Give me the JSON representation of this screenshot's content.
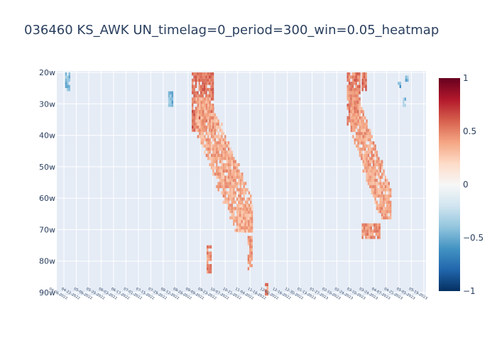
{
  "chart_data": {
    "type": "heatmap",
    "title": "036460 KS_AWK UN_timelag=0_period=300_win=0.05_heatmap",
    "xlabel": "",
    "ylabel": "",
    "x_tick_labels": [
      "04-06-2022",
      "04-22-2022",
      "05-06-2022",
      "05-20-2022",
      "06-03-2022",
      "06-17-2022",
      "07-01-2022",
      "07-15-2022",
      "07-29-2022",
      "08-12-2022",
      "08-26-2022",
      "09-09-2022",
      "09-23-2022",
      "10-07-2022",
      "10-21-2022",
      "11-04-2022",
      "11-18-2022",
      "12-02-2022",
      "12-16-2022",
      "12-30-2022",
      "01-13-2023",
      "01-27-2023",
      "02-10-2023",
      "02-24-2023",
      "03-10-2023",
      "03-24-2023",
      "04-07-2023",
      "04-21-2023",
      "05-05-2023",
      "05-19-2023"
    ],
    "y_tick_labels": [
      "20w",
      "30w",
      "40w",
      "50w",
      "60w",
      "70w",
      "80w",
      "90w"
    ],
    "y_range": [
      20,
      90
    ],
    "zmin": -1,
    "zmax": 1,
    "colorscale": "RdBu_r",
    "colorbar_ticks": [
      {
        "value": 1,
        "label": "1"
      },
      {
        "value": 0.5,
        "label": "0.5"
      },
      {
        "value": 0,
        "label": "0"
      },
      {
        "value": -0.5,
        "label": "−0.5"
      },
      {
        "value": -1,
        "label": "−1"
      }
    ],
    "grid": true,
    "regions": [
      {
        "name": "band-1",
        "x_from": 10.3,
        "x_to": 12.0,
        "y_top": 20,
        "y_bottom": 38,
        "value": 0.55
      },
      {
        "name": "band-1-diag",
        "x_from": 10.6,
        "x_to": 15.0,
        "y_top": 28,
        "y_bottom": 70,
        "value": 0.38,
        "shape": "diagonal"
      },
      {
        "name": "band-1-tail",
        "x_from": 14.0,
        "x_to": 15.2,
        "y_top": 62,
        "y_bottom": 70,
        "value": 0.35
      },
      {
        "name": "band-1-lower",
        "x_from": 11.5,
        "x_to": 11.9,
        "y_top": 75,
        "y_bottom": 83,
        "value": 0.45
      },
      {
        "name": "band-1-lower-b",
        "x_from": 14.8,
        "x_to": 15.2,
        "y_top": 72,
        "y_bottom": 82,
        "value": 0.42
      },
      {
        "name": "band-1-spot",
        "x_from": 16.2,
        "x_to": 16.4,
        "y_top": 87,
        "y_bottom": 90,
        "value": 0.5
      },
      {
        "name": "band-2",
        "x_from": 22.8,
        "x_to": 23.8,
        "y_top": 20,
        "y_bottom": 36,
        "value": 0.5
      },
      {
        "name": "band-2-diag",
        "x_from": 23.1,
        "x_to": 26.3,
        "y_top": 30,
        "y_bottom": 66,
        "value": 0.4,
        "shape": "diagonal"
      },
      {
        "name": "band-2-spot",
        "x_from": 24.0,
        "x_to": 24.3,
        "y_top": 20,
        "y_bottom": 25,
        "value": 0.55
      },
      {
        "name": "band-2-low",
        "x_from": 24.0,
        "x_to": 25.5,
        "y_top": 68,
        "y_bottom": 72,
        "value": 0.45
      },
      {
        "name": "neg-1",
        "x_from": 0.1,
        "x_to": 0.4,
        "y_top": 20,
        "y_bottom": 25,
        "value": -0.45
      },
      {
        "name": "neg-2",
        "x_from": 8.4,
        "x_to": 8.8,
        "y_top": 26,
        "y_bottom": 30,
        "value": -0.45
      },
      {
        "name": "neg-3",
        "x_from": 26.9,
        "x_to": 27.1,
        "y_top": 23,
        "y_bottom": 24,
        "value": -0.5
      },
      {
        "name": "neg-4",
        "x_from": 27.5,
        "x_to": 27.7,
        "y_top": 21,
        "y_bottom": 22,
        "value": -0.45
      },
      {
        "name": "neg-5",
        "x_from": 27.3,
        "x_to": 27.5,
        "y_top": 28,
        "y_bottom": 30,
        "value": -0.4
      }
    ]
  }
}
